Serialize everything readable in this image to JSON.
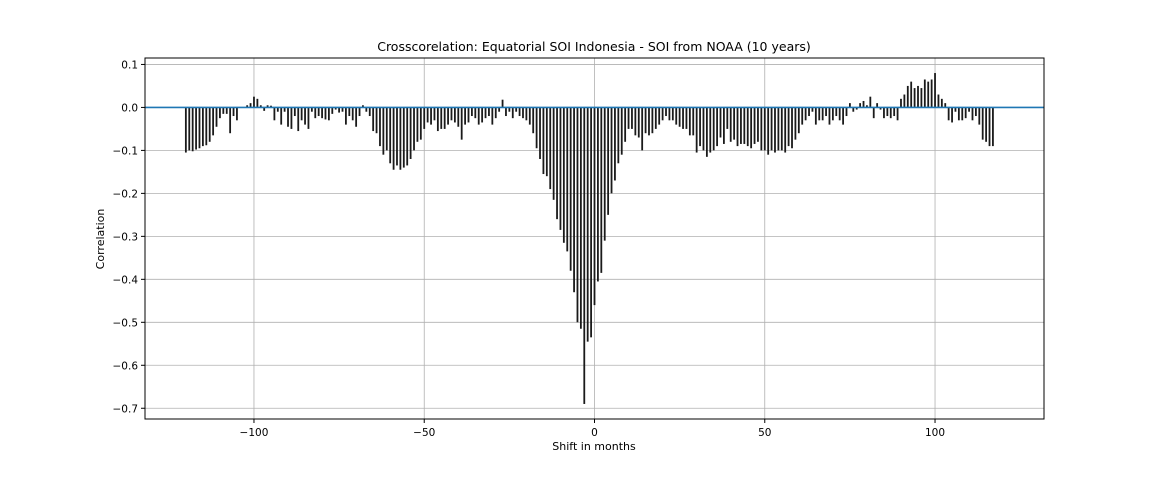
{
  "chart_data": {
    "type": "bar",
    "title": "Crosscorelation: Equatorial SOI Indonesia - SOI from NOAA (10 years)",
    "xlabel": "Shift in months",
    "ylabel": "Correlation",
    "xlim": [
      -132,
      132
    ],
    "ylim": [
      -0.725,
      0.115
    ],
    "xticks": [
      -100,
      -50,
      0,
      50,
      100
    ],
    "xtick_labels": [
      "−100",
      "−50",
      "0",
      "50",
      "100"
    ],
    "yticks": [
      0.1,
      0.0,
      -0.1,
      -0.2,
      -0.3,
      -0.4,
      -0.5,
      -0.6,
      -0.7
    ],
    "ytick_labels": [
      "0.1",
      "0.0",
      "−0.1",
      "−0.2",
      "−0.3",
      "−0.4",
      "−0.5",
      "−0.6",
      "−0.7"
    ],
    "grid": true,
    "bar_color": "#1a1a1a",
    "zero_line_color": "#1f77b4",
    "x_start": -120,
    "x_step": 1,
    "values": [
      -0.105,
      -0.1,
      -0.102,
      -0.098,
      -0.095,
      -0.09,
      -0.088,
      -0.08,
      -0.065,
      -0.045,
      -0.025,
      -0.015,
      -0.015,
      -0.06,
      -0.02,
      -0.03,
      0.0,
      0.0,
      0.005,
      0.01,
      0.025,
      0.02,
      0.005,
      -0.008,
      0.005,
      0.004,
      -0.03,
      -0.01,
      -0.04,
      -0.01,
      -0.045,
      -0.05,
      -0.02,
      -0.055,
      -0.03,
      -0.04,
      -0.05,
      -0.01,
      -0.025,
      -0.02,
      -0.025,
      -0.028,
      -0.03,
      -0.015,
      -0.005,
      -0.012,
      -0.01,
      -0.04,
      -0.02,
      -0.03,
      -0.045,
      -0.02,
      0.005,
      -0.01,
      -0.02,
      -0.055,
      -0.06,
      -0.09,
      -0.11,
      -0.1,
      -0.13,
      -0.145,
      -0.135,
      -0.145,
      -0.14,
      -0.135,
      -0.12,
      -0.1,
      -0.08,
      -0.075,
      -0.05,
      -0.035,
      -0.04,
      -0.03,
      -0.055,
      -0.05,
      -0.05,
      -0.04,
      -0.03,
      -0.035,
      -0.045,
      -0.075,
      -0.04,
      -0.035,
      -0.02,
      -0.025,
      -0.04,
      -0.035,
      -0.025,
      -0.02,
      -0.04,
      -0.025,
      -0.01,
      0.018,
      -0.02,
      -0.01,
      -0.025,
      -0.01,
      -0.02,
      -0.025,
      -0.03,
      -0.04,
      -0.06,
      -0.095,
      -0.12,
      -0.155,
      -0.16,
      -0.19,
      -0.215,
      -0.26,
      -0.285,
      -0.315,
      -0.335,
      -0.38,
      -0.43,
      -0.5,
      -0.515,
      -0.69,
      -0.545,
      -0.535,
      -0.46,
      -0.405,
      -0.385,
      -0.31,
      -0.25,
      -0.2,
      -0.17,
      -0.13,
      -0.11,
      -0.08,
      -0.05,
      -0.05,
      -0.065,
      -0.07,
      -0.1,
      -0.06,
      -0.065,
      -0.06,
      -0.05,
      -0.04,
      -0.03,
      -0.02,
      -0.03,
      -0.03,
      -0.04,
      -0.045,
      -0.05,
      -0.05,
      -0.065,
      -0.065,
      -0.105,
      -0.09,
      -0.1,
      -0.115,
      -0.105,
      -0.1,
      -0.09,
      -0.07,
      -0.085,
      -0.05,
      -0.08,
      -0.075,
      -0.09,
      -0.085,
      -0.085,
      -0.09,
      -0.095,
      -0.085,
      -0.08,
      -0.1,
      -0.1,
      -0.11,
      -0.1,
      -0.105,
      -0.1,
      -0.1,
      -0.105,
      -0.09,
      -0.095,
      -0.075,
      -0.06,
      -0.04,
      -0.03,
      -0.02,
      -0.01,
      -0.04,
      -0.03,
      -0.03,
      -0.02,
      -0.04,
      -0.03,
      -0.02,
      -0.03,
      -0.04,
      -0.02,
      0.01,
      -0.01,
      -0.005,
      0.01,
      0.015,
      0.005,
      0.025,
      -0.025,
      0.01,
      -0.005,
      -0.025,
      -0.02,
      -0.025,
      -0.02,
      -0.03,
      0.02,
      0.03,
      0.05,
      0.06,
      0.045,
      0.05,
      0.045,
      0.065,
      0.06,
      0.065,
      0.08,
      0.03,
      0.02,
      0.01,
      -0.03,
      -0.035,
      -0.01,
      -0.03,
      -0.03,
      -0.025,
      -0.01,
      -0.03,
      -0.02,
      -0.04,
      -0.075,
      -0.08,
      -0.09,
      -0.09
    ]
  }
}
